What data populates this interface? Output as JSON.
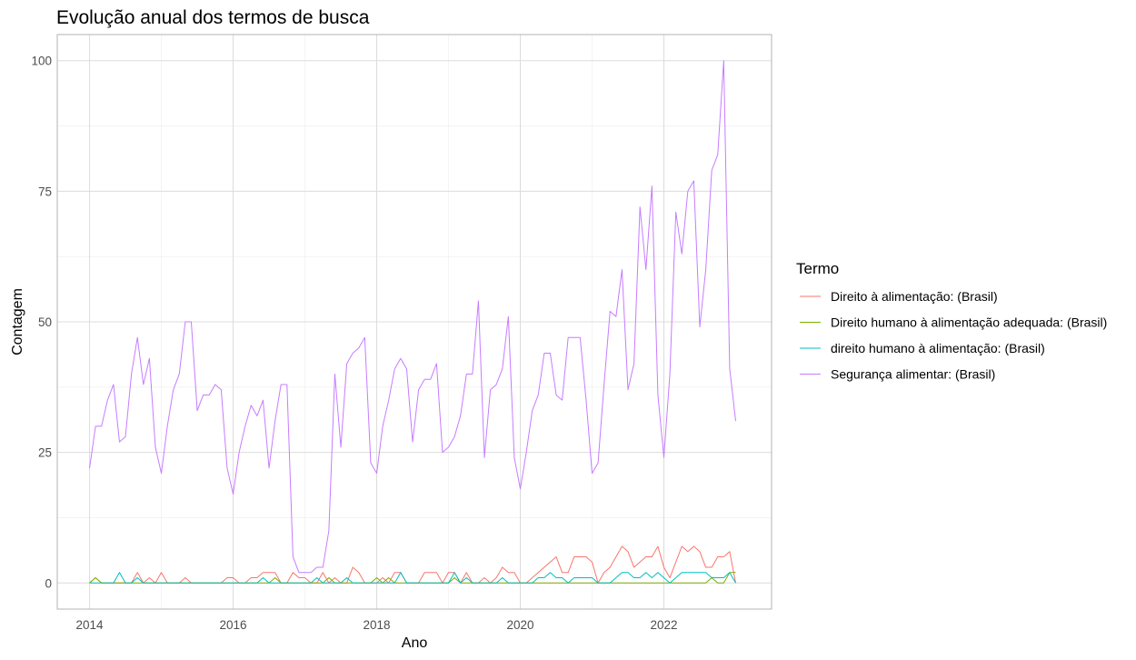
{
  "chart_data": {
    "type": "line",
    "title": "Evolução anual dos termos de busca",
    "xlabel": "Ano",
    "ylabel": "Contagem",
    "xlim": [
      2013.55,
      2023.5
    ],
    "ylim": [
      -5,
      105
    ],
    "x_ticks": [
      2014,
      2016,
      2018,
      2020,
      2022
    ],
    "y_ticks": [
      0,
      25,
      50,
      75,
      100
    ],
    "grid": true,
    "legend_position": "right",
    "legend_title": "Termo",
    "x_start": 2014.0,
    "x_step_label": "monthly",
    "series": [
      {
        "name": "Direito à alimentação: (Brasil)",
        "color": "#F8766D",
        "values": [
          0,
          1,
          0,
          0,
          0,
          0,
          0,
          0,
          2,
          0,
          1,
          0,
          2,
          0,
          0,
          0,
          1,
          0,
          0,
          0,
          0,
          0,
          0,
          1,
          1,
          0,
          0,
          1,
          1,
          2,
          2,
          2,
          0,
          0,
          2,
          1,
          1,
          0,
          0,
          2,
          0,
          1,
          0,
          0,
          3,
          2,
          0,
          0,
          0,
          1,
          0,
          2,
          2,
          0,
          0,
          0,
          2,
          2,
          2,
          0,
          2,
          2,
          0,
          2,
          0,
          0,
          1,
          0,
          1,
          3,
          2,
          2,
          0,
          0,
          1,
          2,
          3,
          4,
          5,
          2,
          2,
          5,
          5,
          5,
          4,
          0,
          2,
          3,
          5,
          7,
          6,
          3,
          4,
          5,
          5,
          7,
          3,
          1,
          4,
          7,
          6,
          7,
          6,
          3,
          3,
          5,
          5,
          6,
          0
        ]
      },
      {
        "name": "Direito humano à alimentação adequada: (Brasil)",
        "color": "#7CAE00",
        "values": [
          0,
          1,
          0,
          0,
          0,
          0,
          0,
          0,
          0,
          0,
          0,
          0,
          0,
          0,
          0,
          0,
          0,
          0,
          0,
          0,
          0,
          0,
          0,
          0,
          0,
          0,
          0,
          0,
          0,
          0,
          0,
          1,
          0,
          0,
          0,
          0,
          0,
          0,
          0,
          0,
          1,
          0,
          0,
          0,
          0,
          0,
          0,
          0,
          1,
          0,
          1,
          0,
          0,
          0,
          0,
          0,
          0,
          0,
          0,
          0,
          0,
          1,
          0,
          0,
          0,
          0,
          0,
          0,
          0,
          0,
          0,
          0,
          0,
          0,
          0,
          0,
          0,
          0,
          0,
          0,
          0,
          0,
          0,
          0,
          0,
          0,
          0,
          0,
          0,
          0,
          0,
          0,
          0,
          0,
          0,
          0,
          0,
          0,
          0,
          0,
          0,
          0,
          0,
          0,
          1,
          0,
          0,
          2,
          2
        ]
      },
      {
        "name": "direito humano à alimentação: (Brasil)",
        "color": "#00BFC4",
        "values": [
          0,
          0,
          0,
          0,
          0,
          2,
          0,
          0,
          1,
          0,
          0,
          0,
          0,
          0,
          0,
          0,
          0,
          0,
          0,
          0,
          0,
          0,
          0,
          0,
          0,
          0,
          0,
          0,
          0,
          1,
          0,
          0,
          0,
          0,
          0,
          0,
          0,
          0,
          1,
          0,
          0,
          0,
          0,
          1,
          0,
          0,
          0,
          0,
          0,
          0,
          0,
          0,
          2,
          0,
          0,
          0,
          0,
          0,
          0,
          0,
          0,
          2,
          0,
          1,
          0,
          0,
          0,
          0,
          0,
          1,
          0,
          0,
          0,
          0,
          0,
          1,
          1,
          2,
          1,
          1,
          0,
          1,
          1,
          1,
          1,
          0,
          0,
          0,
          1,
          2,
          2,
          1,
          1,
          2,
          1,
          2,
          1,
          0,
          1,
          2,
          2,
          2,
          2,
          2,
          1,
          1,
          1,
          2,
          0
        ]
      },
      {
        "name": "Segurança alimentar: (Brasil)",
        "color": "#C77CFF",
        "values": [
          22,
          30,
          30,
          35,
          38,
          27,
          28,
          40,
          47,
          38,
          43,
          26,
          21,
          30,
          37,
          40,
          50,
          50,
          33,
          36,
          36,
          38,
          37,
          22,
          17,
          25,
          30,
          34,
          32,
          35,
          22,
          31,
          38,
          38,
          5,
          2,
          2,
          2,
          3,
          3,
          10,
          40,
          26,
          42,
          44,
          45,
          47,
          23,
          21,
          30,
          35,
          41,
          43,
          41,
          27,
          37,
          39,
          39,
          42,
          25,
          26,
          28,
          32,
          40,
          40,
          54,
          24,
          37,
          38,
          41,
          51,
          24,
          18,
          25,
          33,
          36,
          44,
          44,
          36,
          35,
          47,
          47,
          47,
          35,
          21,
          23,
          38,
          52,
          51,
          60,
          37,
          42,
          72,
          60,
          76,
          36,
          24,
          40,
          71,
          63,
          75,
          77,
          49,
          60,
          79,
          82,
          100,
          41,
          31
        ]
      }
    ]
  }
}
